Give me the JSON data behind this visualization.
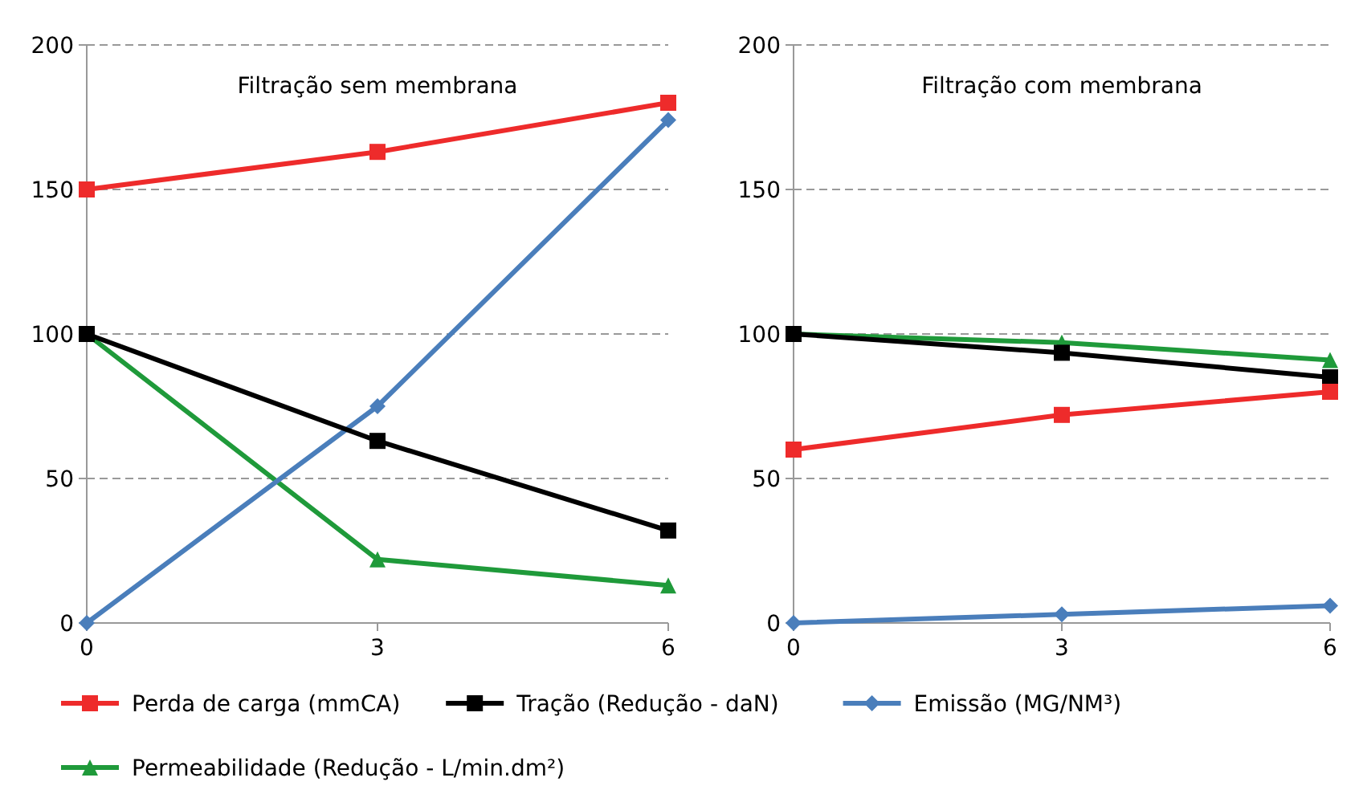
{
  "chart_data": [
    {
      "type": "line",
      "title": "Filtração sem membrana",
      "x": [
        0,
        3,
        6
      ],
      "xlim": [
        0,
        6
      ],
      "xticks": [
        0,
        3,
        6
      ],
      "ylim": [
        0,
        200
      ],
      "yticks": [
        0,
        50,
        100,
        150,
        200
      ],
      "grid": "y",
      "legend": "bottom",
      "line_style": "solid",
      "series": [
        {
          "name": "Perda de carga (mmCA)",
          "color": "#ee2b2b",
          "marker": "square",
          "values": [
            150,
            163,
            180
          ]
        },
        {
          "name": "Tração (Redução - daN)",
          "color": "#000000",
          "marker": "square",
          "values": [
            100,
            63,
            32
          ]
        },
        {
          "name": "Emissão (MG/NM³)",
          "color": "#4a7ebb",
          "marker": "diamond",
          "values": [
            0,
            75,
            174
          ]
        },
        {
          "name": "Permeabilidade (Redução - L/min.dm²)",
          "color": "#1f9a3a",
          "marker": "triangle",
          "values": [
            100,
            22,
            13
          ]
        }
      ]
    },
    {
      "type": "line",
      "title": "Filtração com membrana",
      "x": [
        0,
        3,
        6
      ],
      "xlim": [
        0,
        6
      ],
      "xticks": [
        0,
        3,
        6
      ],
      "ylim": [
        0,
        200
      ],
      "yticks": [
        0,
        50,
        100,
        150,
        200
      ],
      "grid": "y",
      "line_style": "solid",
      "series": [
        {
          "color": "#ee2b2b",
          "marker": "square",
          "values": [
            60,
            72,
            80
          ]
        },
        {
          "color": "#000000",
          "marker": "square",
          "values": [
            100,
            93.5,
            85
          ]
        },
        {
          "color": "#4a7ebb",
          "marker": "diamond",
          "values": [
            0,
            3,
            6
          ]
        },
        {
          "color": "#1f9a3a",
          "marker": "triangle",
          "values": [
            100,
            97,
            91
          ]
        }
      ]
    }
  ]
}
